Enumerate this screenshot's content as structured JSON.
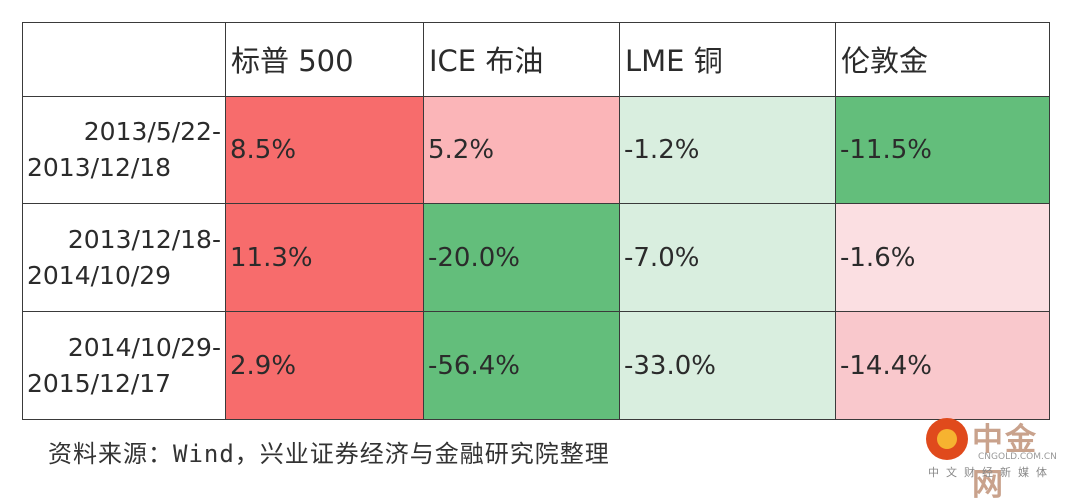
{
  "table": {
    "columns": [
      "",
      "标普 500",
      "ICE 布油",
      "LME 铜",
      "伦敦金"
    ],
    "rows": [
      {
        "period": [
          "2013/5/22-",
          "2013/12/18"
        ],
        "values": [
          "8.5%",
          "5.2%",
          "-1.2%",
          "-11.5%"
        ],
        "colors": [
          "#f76c6c",
          "#fbb5b8",
          "#d9eedf",
          "#63be7b"
        ]
      },
      {
        "period": [
          "2013/12/18-",
          "2014/10/29"
        ],
        "values": [
          "11.3%",
          "-20.0%",
          "-7.0%",
          "-1.6%"
        ],
        "colors": [
          "#f76c6c",
          "#63be7b",
          "#d9eedf",
          "#fbdfe2"
        ]
      },
      {
        "period": [
          "2014/10/29-",
          "2015/12/17"
        ],
        "values": [
          "2.9%",
          "-56.4%",
          "-33.0%",
          "-14.4%"
        ],
        "colors": [
          "#f76c6c",
          "#63be7b",
          "#d9eedf",
          "#f9c8cc"
        ]
      }
    ]
  },
  "footnote": "资料来源：Wind，兴业证券经济与金融研究院整理",
  "watermark": {
    "name": "中金网",
    "domain": "CNGOLD.COM.CN",
    "tagline": "中文财经新媒体"
  }
}
